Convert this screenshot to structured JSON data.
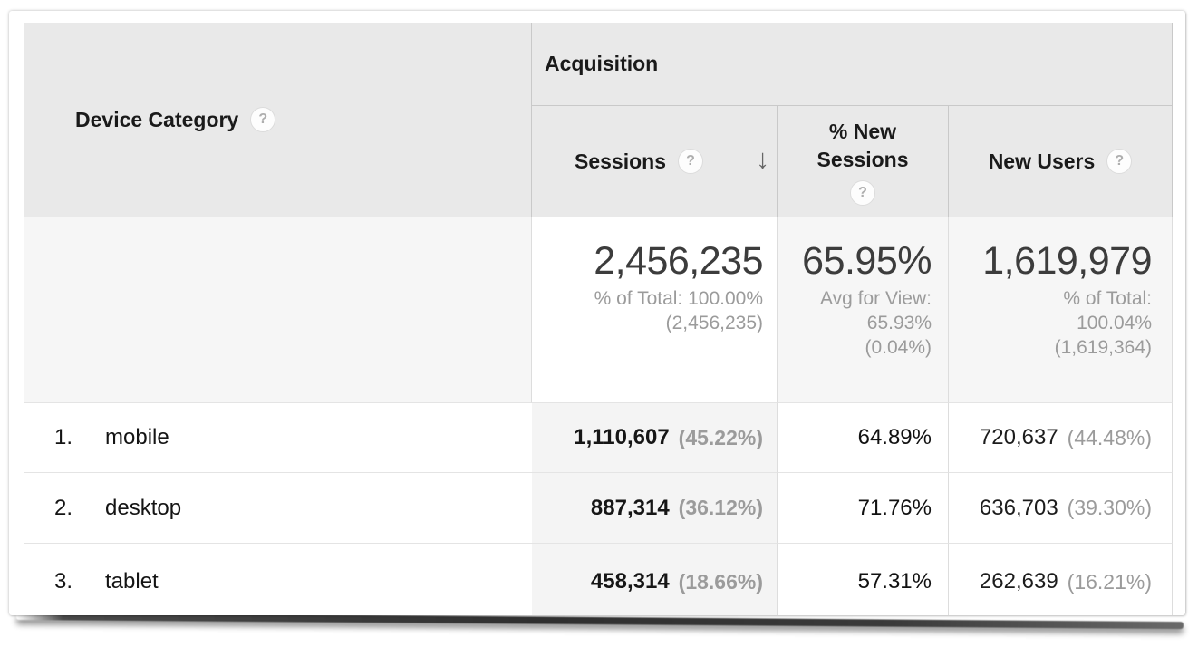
{
  "header": {
    "row_dimension": "Device Category",
    "group": "Acquisition",
    "metrics": {
      "sessions": "Sessions",
      "new_sessions_line1": "% New",
      "new_sessions_line2": "Sessions",
      "new_users": "New Users"
    },
    "help_glyph": "?",
    "sort_arrow": "↓",
    "sorted_by": "Sessions",
    "sort_direction": "descending"
  },
  "summary": {
    "sessions": {
      "value": "2,456,235",
      "sub": [
        "% of Total: 100.00%",
        "(2,456,235)"
      ]
    },
    "pct_new_sessions": {
      "value": "65.95%",
      "sub": [
        "Avg for View:",
        "65.93%",
        "(0.04%)"
      ]
    },
    "new_users": {
      "value": "1,619,979",
      "sub": [
        "% of Total:",
        "100.04%",
        "(1,619,364)"
      ]
    }
  },
  "rows": [
    {
      "index": "1.",
      "label": "mobile",
      "sessions": "1,110,607",
      "sessions_pct": "(45.22%)",
      "pct_new_sessions": "64.89%",
      "new_users": "720,637",
      "new_users_pct": "(44.48%)"
    },
    {
      "index": "2.",
      "label": "desktop",
      "sessions": "887,314",
      "sessions_pct": "(36.12%)",
      "pct_new_sessions": "71.76%",
      "new_users": "636,703",
      "new_users_pct": "(39.30%)"
    },
    {
      "index": "3.",
      "label": "tablet",
      "sessions": "458,314",
      "sessions_pct": "(18.66%)",
      "pct_new_sessions": "57.31%",
      "new_users": "262,639",
      "new_users_pct": "(16.21%)"
    }
  ],
  "colors": {
    "header_bg": "#e9e9e9",
    "summary_bg": "#f6f6f6",
    "sorted_column_bg": "#f4f4f4",
    "muted_text": "#9b9b9b",
    "dark_text": "#1a1a1a"
  }
}
